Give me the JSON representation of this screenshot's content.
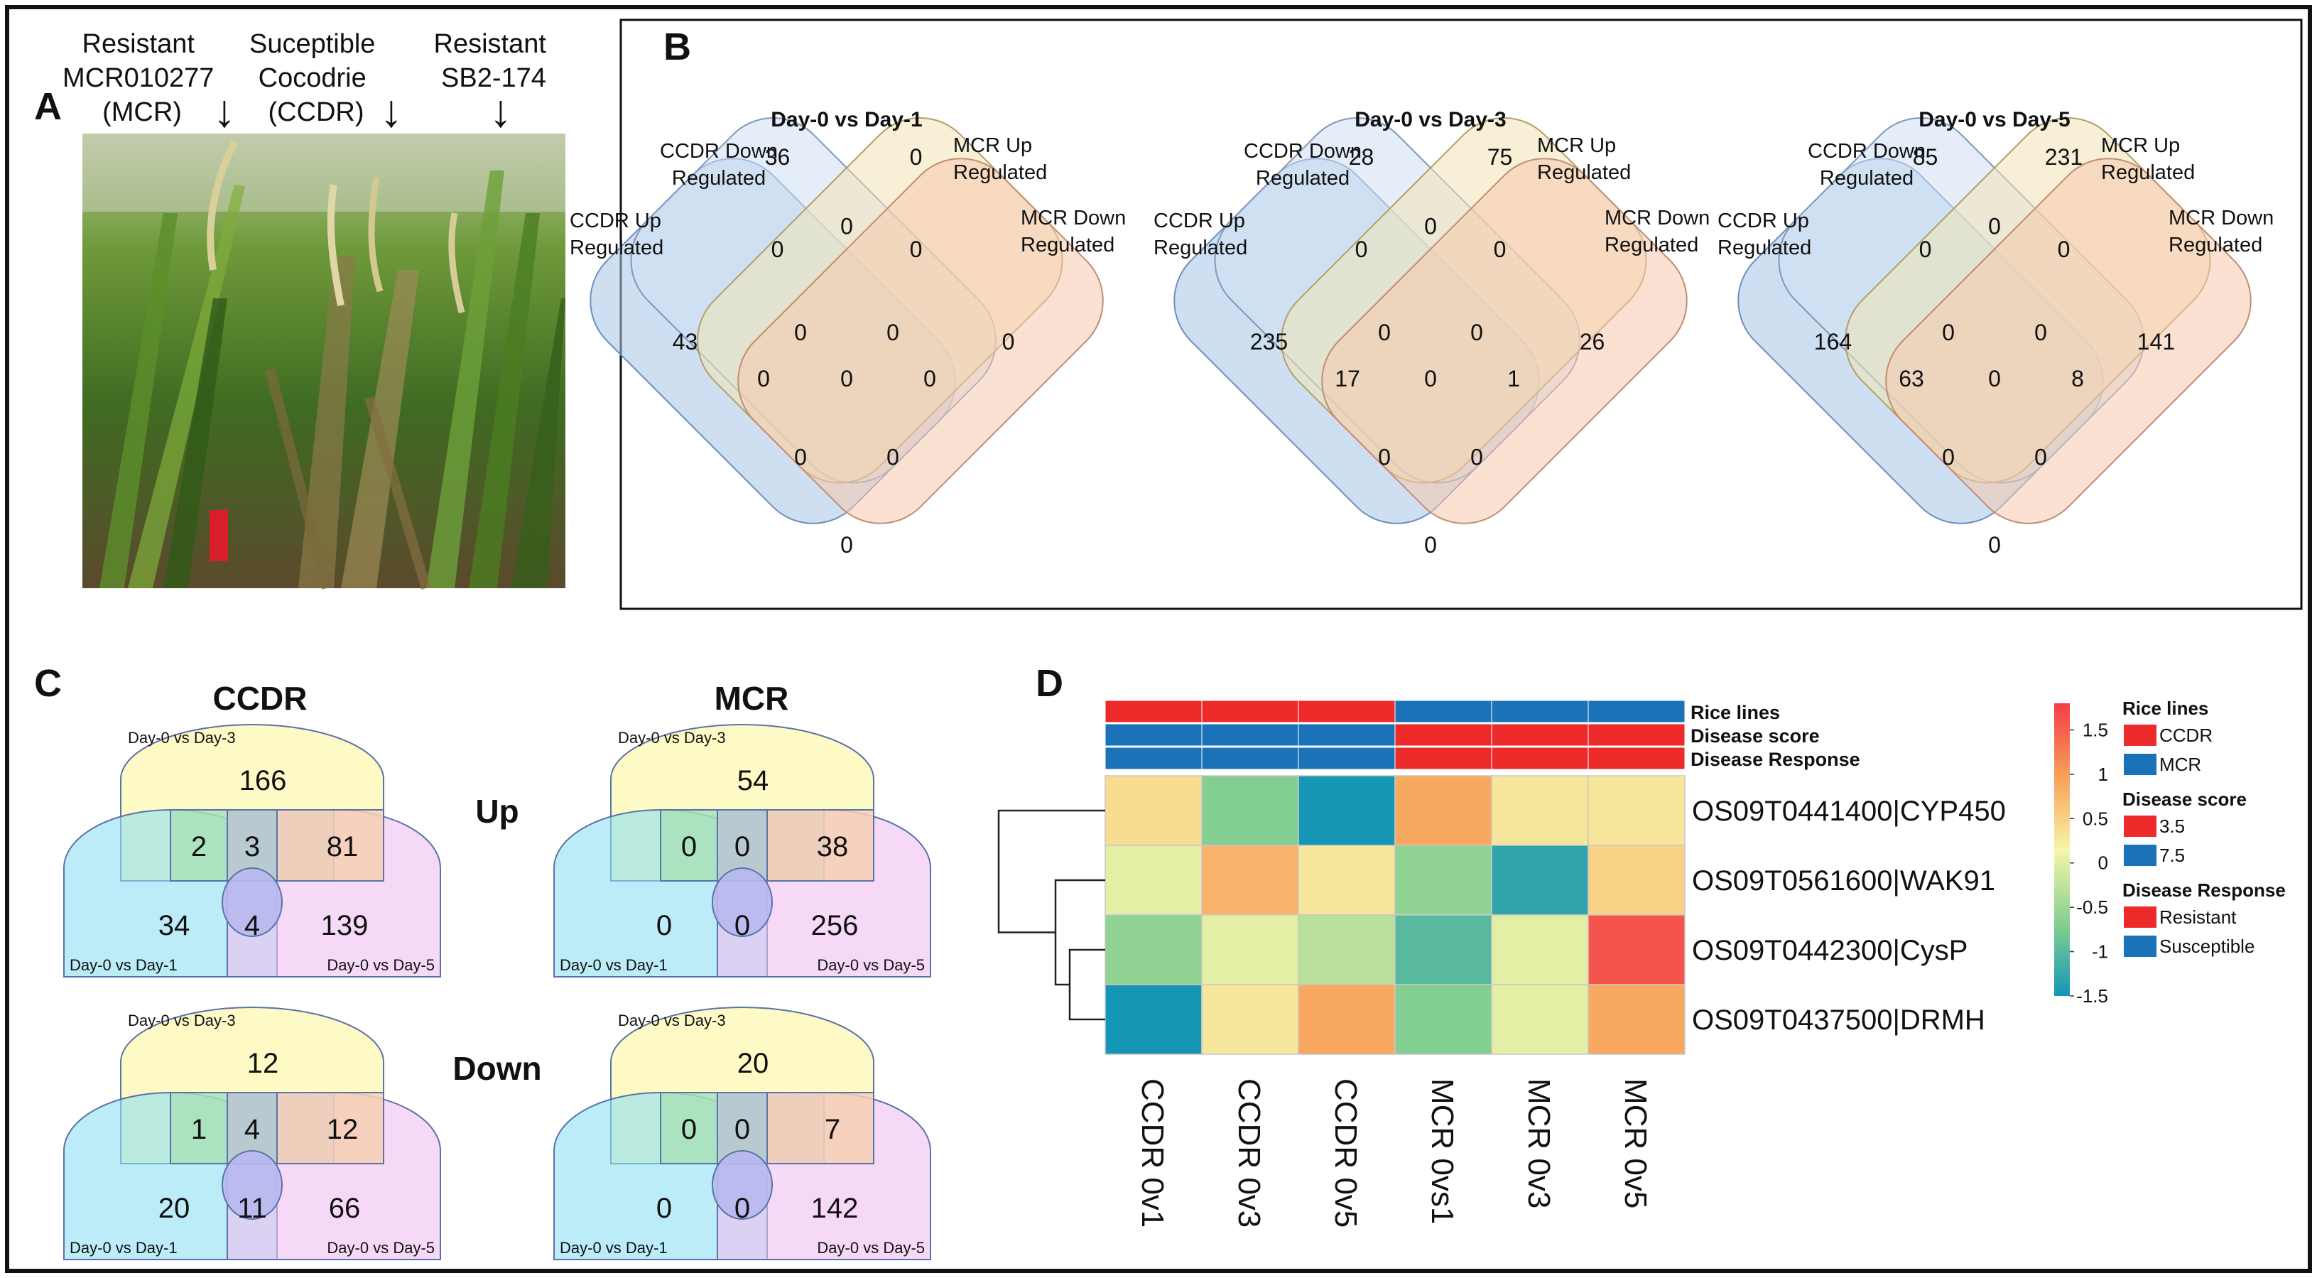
{
  "panel_letters": {
    "a": "A",
    "b": "B",
    "c": "C",
    "d": "D"
  },
  "panel_a": {
    "labels": [
      {
        "lines": [
          "Resistant",
          "MCR010277",
          "(MCR)"
        ]
      },
      {
        "lines": [
          "Suceptible",
          "Cocodrie",
          "(CCDR)"
        ]
      },
      {
        "lines": [
          "Resistant",
          "SB2-174"
        ]
      }
    ],
    "arrow_glyph": "↓"
  },
  "panel_b": {
    "category_labels": {
      "ccdr_down": [
        "CCDR Down",
        "Regulated"
      ],
      "ccdr_up": [
        "CCDR Up",
        "Regulated"
      ],
      "mcr_up": [
        "MCR Up",
        "Regulated"
      ],
      "mcr_down": [
        "MCR Down",
        "Regulated"
      ]
    },
    "venns": [
      {
        "title": "Day-0 vs Day-1",
        "counts": {
          "ccdr_up": "43",
          "ccdr_down": "36",
          "mcr_up": "0",
          "mcr_down": "0",
          "up_down": "0",
          "up_mcrup": "0",
          "down_mcrup": "0",
          "down_mcrdown": "0",
          "mcrup_mcrdown": "0",
          "up_mcrdown": "0",
          "up_down_mcrup": "0",
          "down_mcrup_mcrdown": "0",
          "all": "0",
          "up_mcrup_mcrdown": "0",
          "up_down_mcrdown": "0"
        }
      },
      {
        "title": "Day-0 vs Day-3",
        "counts": {
          "ccdr_up": "235",
          "ccdr_down": "28",
          "mcr_up": "75",
          "mcr_down": "26",
          "up_down": "0",
          "up_mcrup": "0",
          "down_mcrup": "0",
          "down_mcrdown": "0",
          "mcrup_mcrdown": "0",
          "up_mcrdown": "17",
          "up_down_mcrup": "0",
          "down_mcrup_mcrdown": "1",
          "all": "0",
          "up_mcrup_mcrdown": "0",
          "up_down_mcrdown": "0"
        }
      },
      {
        "title": "Day-0 vs Day-5",
        "counts": {
          "ccdr_up": "164",
          "ccdr_down": "85",
          "mcr_up": "231",
          "mcr_down": "141",
          "up_down": "0",
          "up_mcrup": "0",
          "down_mcrup": "0",
          "down_mcrdown": "0",
          "mcrup_mcrdown": "0",
          "up_mcrdown": "63",
          "up_down_mcrup": "0",
          "down_mcrup_mcrdown": "8",
          "all": "0",
          "up_mcrup_mcrdown": "0",
          "up_down_mcrdown": "0"
        }
      }
    ]
  },
  "panel_c": {
    "headers": {
      "ccdr": "CCDR",
      "mcr": "MCR"
    },
    "row_labels": {
      "up": "Up",
      "down": "Down"
    },
    "set_labels": {
      "d3": "Day-0 vs Day-3",
      "d1": "Day-0 vs Day-1",
      "d5": "Day-0 vs Day-5"
    },
    "venns": [
      {
        "id": "ccdr-up",
        "d3": "166",
        "d1": "34",
        "d5": "139",
        "d1_d3": "2",
        "all": "3",
        "d3_d5": "81",
        "d1_d5": "4"
      },
      {
        "id": "mcr-up",
        "d3": "54",
        "d1": "0",
        "d5": "256",
        "d1_d3": "0",
        "all": "0",
        "d3_d5": "38",
        "d1_d5": "0"
      },
      {
        "id": "ccdr-down",
        "d3": "12",
        "d1": "20",
        "d5": "66",
        "d1_d3": "1",
        "all": "4",
        "d3_d5": "12",
        "d1_d5": "11"
      },
      {
        "id": "mcr-down",
        "d3": "20",
        "d1": "0",
        "d5": "142",
        "d1_d3": "0",
        "all": "0",
        "d3_d5": "7",
        "d1_d5": "0"
      }
    ]
  },
  "chart_data": {
    "type": "heatmap",
    "title": "",
    "rows": [
      "OS09T0441400|CYP450",
      "OS09T0561600|WAK91",
      "OS09T0442300|CysP",
      "OS09T0437500|DRMH"
    ],
    "columns": [
      "CCDR 0v1",
      "CCDR 0v3",
      "CCDR 0v5",
      "MCR 0vs1",
      "MCR 0v3",
      "MCR 0v5"
    ],
    "values": [
      [
        0.4,
        -0.7,
        -1.5,
        0.9,
        0.3,
        0.3
      ],
      [
        0.0,
        0.8,
        0.3,
        -0.6,
        -1.3,
        0.5
      ],
      [
        -0.6,
        0.0,
        -0.3,
        -1.0,
        0.0,
        1.6
      ],
      [
        -1.5,
        0.3,
        0.9,
        -0.7,
        0.0,
        0.9
      ]
    ],
    "color_scale": {
      "min": -1.5,
      "max": 1.8,
      "ticks": [
        "1.5",
        "1",
        "0.5",
        "0",
        "-0.5",
        "-1",
        "-1.5"
      ],
      "colors": [
        "#1496b4",
        "#86d090",
        "#f6f6aa",
        "#f8a058",
        "#f43c48"
      ]
    },
    "annotation_tracks": [
      {
        "name": "Rice lines",
        "values": [
          "CCDR",
          "CCDR",
          "CCDR",
          "MCR",
          "MCR",
          "MCR"
        ]
      },
      {
        "name": "Disease score",
        "values": [
          "7.5",
          "7.5",
          "7.5",
          "3.5",
          "3.5",
          "3.5"
        ]
      },
      {
        "name": "Disease Response",
        "values": [
          "Susceptible",
          "Susceptible",
          "Susceptible",
          "Resistant",
          "Resistant",
          "Resistant"
        ]
      }
    ],
    "legend": [
      {
        "title": "Rice lines",
        "items": [
          {
            "label": "CCDR",
            "color": "#ee2b2b"
          },
          {
            "label": "MCR",
            "color": "#1a73b8"
          }
        ]
      },
      {
        "title": "Disease score",
        "items": [
          {
            "label": "3.5",
            "color": "#ee2b2b"
          },
          {
            "label": "7.5",
            "color": "#1a73b8"
          }
        ]
      },
      {
        "title": "Disease Response",
        "items": [
          {
            "label": "Resistant",
            "color": "#ee2b2b"
          },
          {
            "label": "Susceptible",
            "color": "#1a73b8"
          }
        ]
      }
    ],
    "track_colors": {
      "CCDR": "#ee2b2b",
      "MCR": "#1a73b8",
      "3.5": "#ee2b2b",
      "7.5": "#1a73b8",
      "Resistant": "#ee2b2b",
      "Susceptible": "#1a73b8"
    },
    "dendrogram": "rows clustered: CYP450 | (WAK91 | (CysP, DRMH))"
  }
}
